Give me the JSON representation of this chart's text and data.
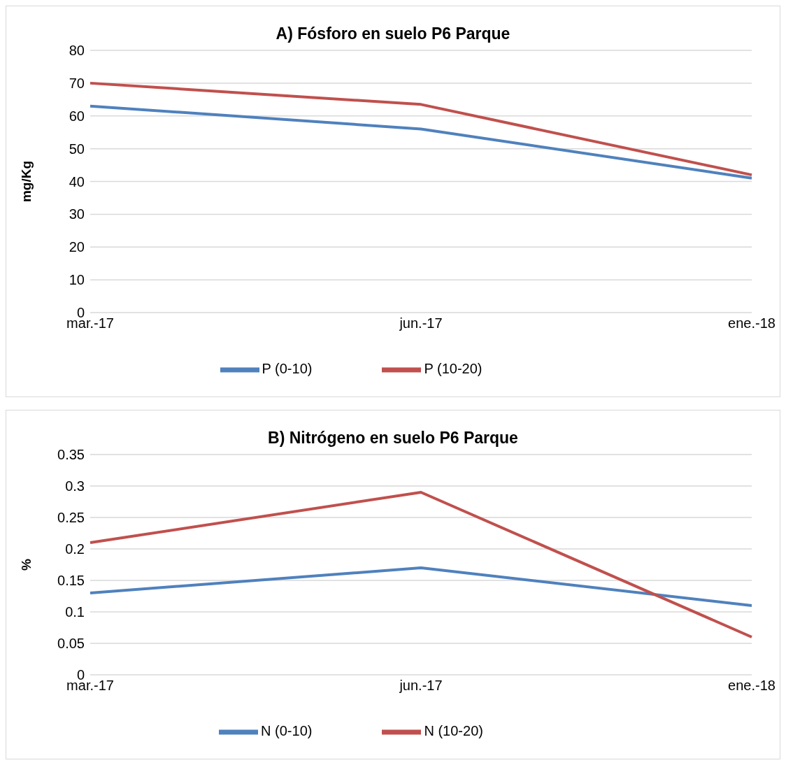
{
  "chart_data": [
    {
      "type": "line",
      "title": "A) Fósforo en suelo P6 Parque",
      "ylabel": "mg/Kg",
      "categories": [
        "mar.-17",
        "jun.-17",
        "ene.-18"
      ],
      "series": [
        {
          "name": "P (0-10)",
          "color": "#4f81bd",
          "values": [
            63,
            56,
            41
          ]
        },
        {
          "name": "P (10-20)",
          "color": "#c0504d",
          "values": [
            70,
            63.5,
            42
          ]
        }
      ],
      "ylim": [
        0,
        80
      ],
      "yticks": [
        0,
        10,
        20,
        30,
        40,
        50,
        60,
        70,
        80
      ],
      "grid": "y",
      "legend": "bottom",
      "marker": "none",
      "line_style": "solid"
    },
    {
      "type": "line",
      "title": "B) Nitrógeno en suelo P6 Parque",
      "ylabel": "%",
      "categories": [
        "mar.-17",
        "jun.-17",
        "ene.-18"
      ],
      "series": [
        {
          "name": "N (0-10)",
          "color": "#4f81bd",
          "values": [
            0.13,
            0.17,
            0.11
          ]
        },
        {
          "name": "N (10-20)",
          "color": "#c0504d",
          "values": [
            0.21,
            0.29,
            0.06
          ]
        }
      ],
      "ylim": [
        0,
        0.35
      ],
      "yticks": [
        0,
        0.05,
        0.1,
        0.15,
        0.2,
        0.25,
        0.3,
        0.35
      ],
      "grid": "y",
      "legend": "bottom",
      "marker": "none",
      "line_style": "solid"
    }
  ]
}
